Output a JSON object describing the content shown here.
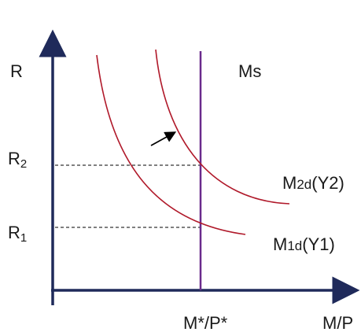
{
  "axes": {
    "y_label": "R",
    "x_label": "M/P",
    "x_tick": "M*/P*"
  },
  "levels": {
    "r2": {
      "base": "R",
      "sub": "2"
    },
    "r1": {
      "base": "R",
      "sub": "1"
    }
  },
  "curves": {
    "supply": "Ms",
    "demand2": {
      "pre": "M",
      "sub": "2d",
      "post": "(Y2)"
    },
    "demand1": {
      "pre": "M",
      "sub": "1d",
      "post": "(Y1)"
    }
  },
  "colors": {
    "axis": "#1f2a5a",
    "demand": "#b0192a",
    "supply": "#6a2a8c",
    "guide": "#000000"
  },
  "arrow": {
    "icon": "shift-right-arrow"
  }
}
